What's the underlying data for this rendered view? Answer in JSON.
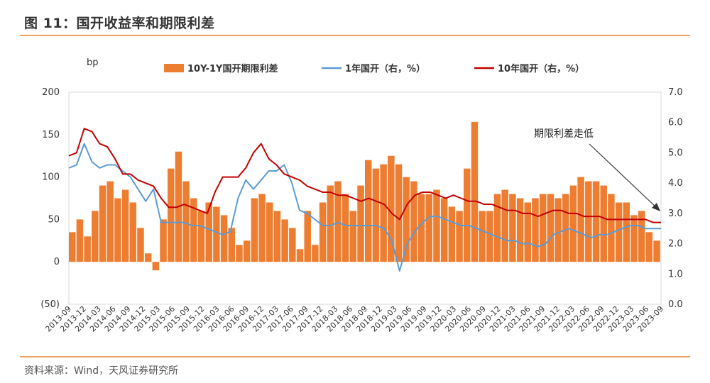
{
  "figure": {
    "title": "图 11：国开收益率和期限利差",
    "source": "资料来源：Wind，天风证券研究所"
  },
  "colors": {
    "spread": "#ed7d31",
    "one_year": "#5b9bd5",
    "ten_year": "#c00000",
    "accent_rule": "#f0a15c"
  },
  "chart_data": {
    "type": "combo",
    "left_unit": "bp",
    "left_ticks": [
      "200",
      "150",
      "100",
      "50",
      "0",
      "(50)"
    ],
    "right_ticks": [
      "7.0",
      "6.0",
      "5.0",
      "4.0",
      "3.0",
      "2.0",
      "1.0",
      "0.0"
    ],
    "ylim_left": [
      -50,
      200
    ],
    "ylim_right": [
      0,
      7
    ],
    "legend": [
      {
        "label": "10Y-1Y国开期限利差",
        "kind": "bar"
      },
      {
        "label": "1年国开（右，%）",
        "kind": "line"
      },
      {
        "label": "10年国开（右，%）",
        "kind": "line"
      }
    ],
    "annotation": "期限利差走低",
    "x_labels": [
      "2013-09",
      "2013-12",
      "2014-03",
      "2014-06",
      "2014-09",
      "2014-12",
      "2015-03",
      "2015-06",
      "2015-09",
      "2015-12",
      "2016-03",
      "2016-06",
      "2016-09",
      "2016-12",
      "2017-03",
      "2017-06",
      "2017-09",
      "2017-12",
      "2018-03",
      "2018-06",
      "2018-09",
      "2018-12",
      "2019-03",
      "2019-06",
      "2019-09",
      "2019-12",
      "2020-03",
      "2020-06",
      "2020-09",
      "2020-12",
      "2021-03",
      "2021-06",
      "2021-09",
      "2021-12",
      "2022-03",
      "2022-06",
      "2022-09",
      "2022-12",
      "2023-03",
      "2023-06",
      "2023-09"
    ],
    "series": [
      {
        "name": "10Y-1Y国开期限利差",
        "axis": "left",
        "unit": "bp",
        "values": [
          35,
          50,
          30,
          60,
          90,
          95,
          75,
          85,
          70,
          40,
          10,
          -10,
          50,
          110,
          130,
          95,
          75,
          60,
          70,
          65,
          55,
          40,
          20,
          25,
          75,
          80,
          70,
          60,
          50,
          40,
          15,
          60,
          20,
          70,
          90,
          95,
          80,
          60,
          90,
          120,
          110,
          115,
          125,
          115,
          100,
          95,
          80,
          80,
          85,
          75,
          65,
          60,
          110,
          165,
          60,
          60,
          80,
          85,
          80,
          75,
          70,
          75,
          80,
          80,
          75,
          80,
          90,
          100,
          95,
          95,
          90,
          80,
          70,
          70,
          55,
          60,
          35,
          25
        ]
      },
      {
        "name": "1年国开（右，%）",
        "axis": "right",
        "unit": "%",
        "values": [
          4.5,
          4.6,
          5.3,
          4.7,
          4.5,
          4.6,
          4.6,
          4.4,
          4.2,
          3.8,
          3.4,
          3.8,
          2.7,
          2.7,
          2.7,
          2.7,
          2.6,
          2.6,
          2.5,
          2.4,
          2.3,
          2.4,
          3.5,
          4.1,
          3.8,
          4.1,
          4.4,
          4.4,
          4.6,
          4.0,
          3.1,
          3.0,
          2.8,
          2.6,
          2.6,
          2.7,
          2.6,
          2.6,
          2.6,
          2.6,
          2.6,
          2.5,
          2.1,
          1.1,
          2.0,
          2.4,
          2.7,
          2.9,
          2.9,
          2.8,
          2.7,
          2.6,
          2.6,
          2.5,
          2.4,
          2.3,
          2.2,
          2.1,
          2.1,
          2.0,
          2.0,
          1.9,
          2.0,
          2.3,
          2.4,
          2.5,
          2.4,
          2.3,
          2.2,
          2.3,
          2.3,
          2.4,
          2.5,
          2.6,
          2.6,
          2.5,
          2.5,
          2.5
        ]
      },
      {
        "name": "10年国开（右，%）",
        "axis": "right",
        "unit": "%",
        "values": [
          4.9,
          5.0,
          5.8,
          5.7,
          5.3,
          5.2,
          4.8,
          4.3,
          4.3,
          4.1,
          4.0,
          3.9,
          3.5,
          3.2,
          3.2,
          3.3,
          3.2,
          3.1,
          3.0,
          3.7,
          4.2,
          4.2,
          4.2,
          4.5,
          5.0,
          5.3,
          4.8,
          4.6,
          4.3,
          4.2,
          4.1,
          3.9,
          3.8,
          3.7,
          3.7,
          3.6,
          3.6,
          3.5,
          3.4,
          3.5,
          3.4,
          3.3,
          3.0,
          2.8,
          3.3,
          3.6,
          3.7,
          3.7,
          3.6,
          3.5,
          3.6,
          3.5,
          3.4,
          3.4,
          3.3,
          3.3,
          3.2,
          3.1,
          3.1,
          3.0,
          3.0,
          2.9,
          3.0,
          3.1,
          3.1,
          3.0,
          3.0,
          2.9,
          2.9,
          2.9,
          2.8,
          2.8,
          2.8,
          2.8,
          2.8,
          2.8,
          2.7,
          2.7
        ]
      }
    ]
  }
}
